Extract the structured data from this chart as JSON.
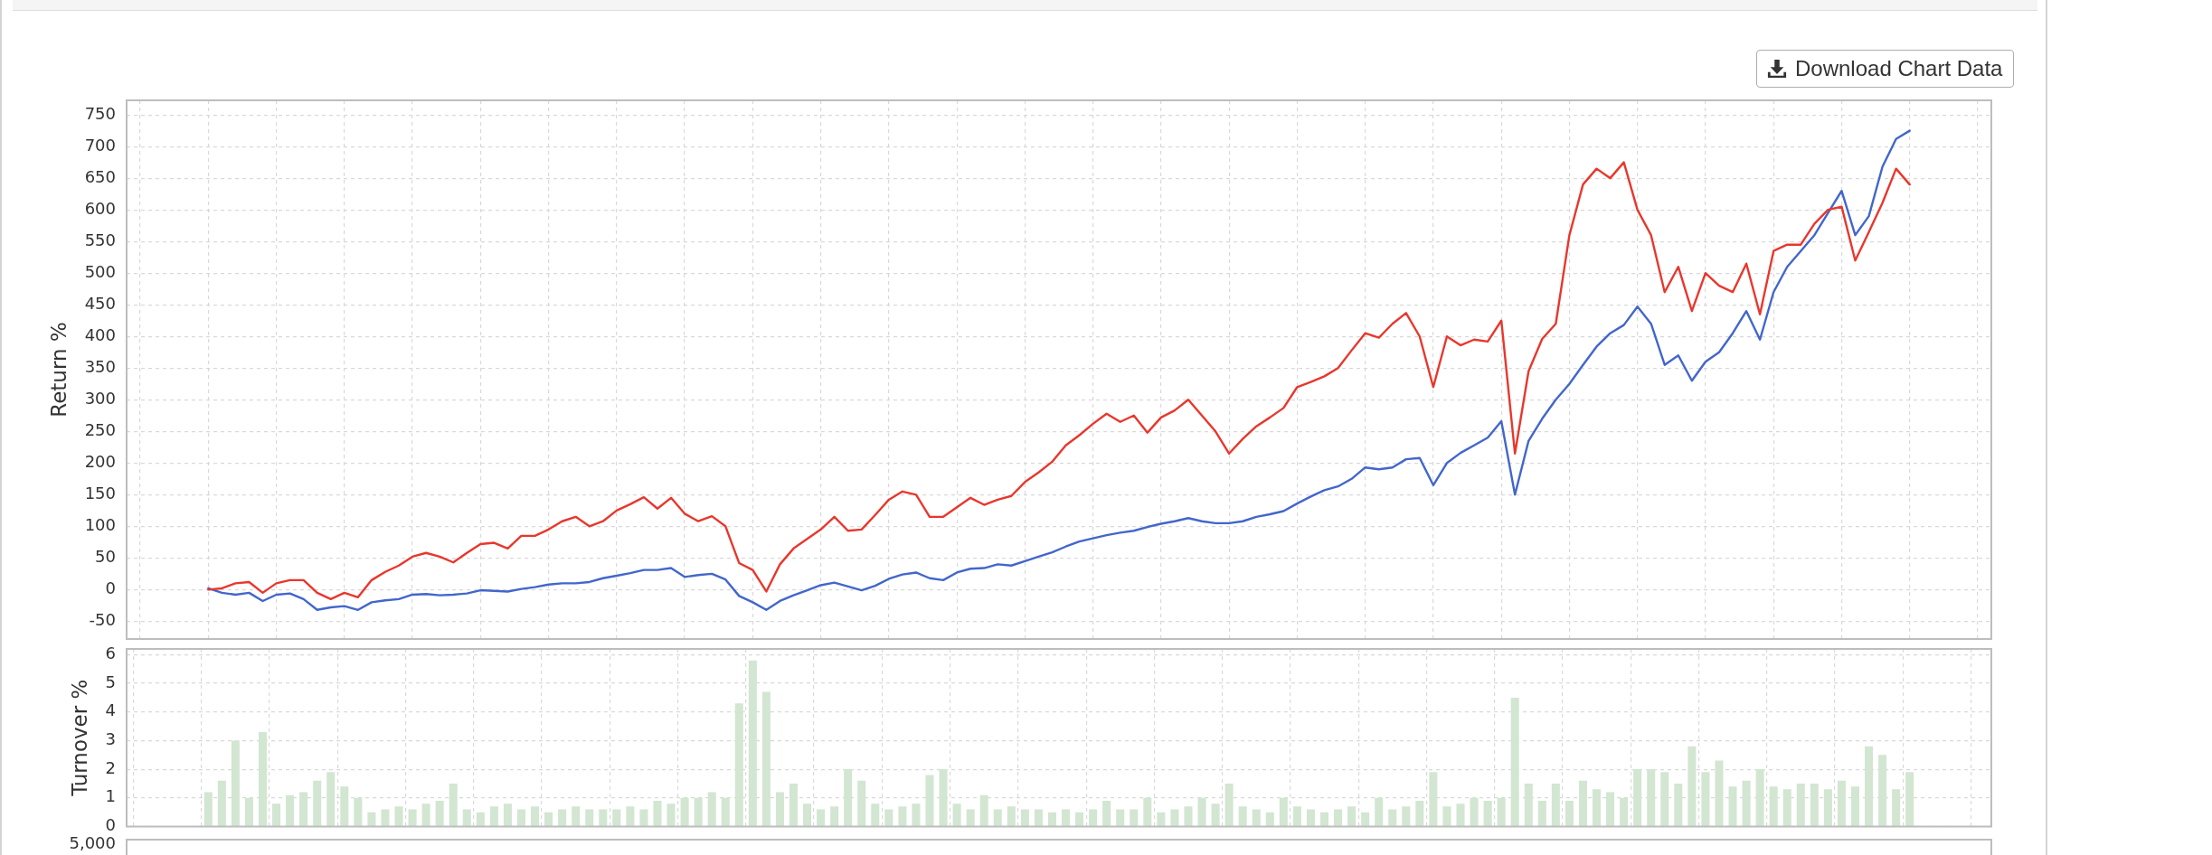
{
  "chart_data": [
    {
      "type": "line",
      "ylabel": "Return %",
      "annotations": [
        "Download Chart Data"
      ],
      "grid": true,
      "tick_labels": "y",
      "ylim": [
        -78,
        773
      ],
      "yticks": [
        -50,
        0,
        50,
        100,
        150,
        200,
        250,
        300,
        350,
        400,
        450,
        500,
        550,
        600,
        650,
        700,
        750
      ],
      "categories": [
        null,
        null,
        null,
        null,
        null,
        null,
        null,
        null,
        null,
        null,
        null,
        null,
        null,
        null,
        null,
        null,
        null,
        null,
        null,
        null,
        null,
        null,
        null,
        null,
        null,
        null,
        null,
        null,
        null,
        null,
        null,
        null,
        null,
        null,
        null,
        null,
        null,
        null,
        null,
        null,
        null,
        null,
        null,
        null,
        null,
        null,
        null,
        null,
        null,
        null,
        null,
        null,
        null,
        null,
        null,
        null,
        null,
        null,
        null,
        null,
        null,
        null,
        null,
        null,
        null,
        null,
        null,
        null,
        null,
        null,
        null,
        null,
        null,
        null,
        null,
        null,
        null,
        null,
        null,
        null,
        null,
        null,
        null,
        null,
        null,
        null,
        null,
        null,
        null,
        null,
        null,
        null,
        null,
        null,
        null,
        null,
        null,
        null,
        null,
        null,
        null,
        null,
        null,
        null,
        null,
        null,
        null,
        null,
        null,
        null,
        null,
        null,
        null,
        null,
        null,
        null,
        null,
        null,
        null,
        null,
        null,
        null,
        null,
        null,
        null,
        null,
        null,
        null,
        null,
        null,
        null,
        null,
        null,
        null,
        null,
        null,
        null,
        null
      ],
      "series": [
        {
          "color": "#e8372d",
          "values": [
            null,
            null,
            null,
            null,
            null,
            null,
            0,
            2,
            10,
            12,
            -5,
            10,
            15,
            15,
            -5,
            -15,
            -5,
            -12,
            15,
            28,
            38,
            52,
            58,
            52,
            43,
            58,
            72,
            74,
            65,
            85,
            85,
            95,
            108,
            115,
            100,
            108,
            125,
            135,
            146,
            128,
            145,
            120,
            108,
            116,
            100,
            42,
            31,
            -3,
            40,
            65,
            80,
            95,
            115,
            93,
            95,
            118,
            142,
            155,
            150,
            115,
            115,
            130,
            145,
            134,
            142,
            148,
            170,
            185,
            202,
            228,
            244,
            262,
            278,
            265,
            275,
            248,
            272,
            283,
            300,
            275,
            250,
            215,
            238,
            258,
            272,
            287,
            320,
            328,
            337,
            350,
            378,
            405,
            398,
            420,
            437,
            400,
            320,
            400,
            386,
            395,
            392,
            425,
            215,
            345,
            396,
            420,
            560,
            640,
            665,
            650,
            675,
            600,
            560,
            470,
            510,
            440,
            500,
            480,
            470,
            515,
            435,
            535,
            545,
            545,
            578,
            600,
            605,
            520,
            565,
            611,
            665,
            640,
            null,
            null,
            null,
            null,
            null,
            null
          ]
        },
        {
          "color": "#4266cb",
          "values": [
            null,
            null,
            null,
            null,
            null,
            null,
            2,
            -5,
            -8,
            -5,
            -18,
            -8,
            -6,
            -15,
            -32,
            -28,
            -26,
            -32,
            -20,
            -17,
            -15,
            -8,
            -7,
            -9,
            -8,
            -6,
            -1,
            -2,
            -3,
            1,
            4,
            8,
            10,
            10,
            12,
            18,
            22,
            26,
            31,
            31,
            34,
            20,
            23,
            25,
            16,
            -10,
            -20,
            -32,
            -18,
            -9,
            -1,
            7,
            11,
            5,
            -1,
            6,
            17,
            24,
            27,
            18,
            15,
            27,
            33,
            34,
            40,
            38,
            45,
            52,
            59,
            68,
            76,
            81,
            86,
            90,
            93,
            99,
            104,
            108,
            113,
            108,
            105,
            105,
            108,
            115,
            119,
            124,
            136,
            147,
            157,
            163,
            175,
            193,
            190,
            193,
            206,
            208,
            165,
            200,
            216,
            228,
            240,
            266,
            150,
            235,
            270,
            300,
            325,
            355,
            384,
            405,
            418,
            447,
            420,
            355,
            370,
            330,
            360,
            375,
            405,
            440,
            395,
            470,
            510,
            535,
            560,
            595,
            630,
            560,
            590,
            668,
            712,
            725,
            null,
            null,
            null,
            null,
            null,
            null
          ]
        }
      ]
    },
    {
      "type": "bar",
      "ylabel": "Turnover %",
      "annotations": [
        "5,000"
      ],
      "grid": true,
      "tick_labels": "y",
      "ylim": [
        0,
        6.2
      ],
      "yticks": [
        0,
        1,
        2,
        3,
        4,
        5,
        6
      ],
      "color": "#d2e6d2",
      "categories": [
        null,
        null,
        null,
        null,
        null,
        null,
        null,
        null,
        null,
        null,
        null,
        null,
        null,
        null,
        null,
        null,
        null,
        null,
        null,
        null,
        null,
        null,
        null,
        null,
        null,
        null,
        null,
        null,
        null,
        null,
        null,
        null,
        null,
        null,
        null,
        null,
        null,
        null,
        null,
        null,
        null,
        null,
        null,
        null,
        null,
        null,
        null,
        null,
        null,
        null,
        null,
        null,
        null,
        null,
        null,
        null,
        null,
        null,
        null,
        null,
        null,
        null,
        null,
        null,
        null,
        null,
        null,
        null,
        null,
        null,
        null,
        null,
        null,
        null,
        null,
        null,
        null,
        null,
        null,
        null,
        null,
        null,
        null,
        null,
        null,
        null,
        null,
        null,
        null,
        null,
        null,
        null,
        null,
        null,
        null,
        null,
        null,
        null,
        null,
        null,
        null,
        null,
        null,
        null,
        null,
        null,
        null,
        null,
        null,
        null,
        null,
        null,
        null,
        null,
        null,
        null,
        null,
        null,
        null,
        null,
        null,
        null,
        null,
        null,
        null,
        null,
        null,
        null,
        null,
        null,
        null,
        null,
        null,
        null,
        null,
        null,
        null,
        null
      ],
      "values": [
        null,
        null,
        null,
        null,
        null,
        null,
        1.2,
        1.6,
        3.0,
        1.0,
        3.3,
        0.8,
        1.1,
        1.2,
        1.6,
        1.9,
        1.4,
        1.0,
        0.5,
        0.6,
        0.7,
        0.6,
        0.8,
        0.9,
        1.5,
        0.6,
        0.5,
        0.7,
        0.8,
        0.6,
        0.7,
        0.5,
        0.6,
        0.7,
        0.6,
        0.6,
        0.6,
        0.7,
        0.6,
        0.9,
        0.8,
        1.0,
        1.0,
        1.2,
        1.0,
        4.3,
        5.8,
        4.7,
        1.2,
        1.5,
        0.8,
        0.6,
        0.7,
        2.0,
        1.6,
        0.8,
        0.6,
        0.7,
        0.8,
        1.8,
        2.0,
        0.8,
        0.6,
        1.1,
        0.6,
        0.7,
        0.6,
        0.6,
        0.5,
        0.6,
        0.5,
        0.6,
        0.9,
        0.6,
        0.6,
        1.0,
        0.5,
        0.6,
        0.7,
        1.0,
        0.8,
        1.5,
        0.7,
        0.6,
        0.5,
        1.0,
        0.7,
        0.6,
        0.5,
        0.6,
        0.7,
        0.5,
        1.0,
        0.6,
        0.7,
        0.9,
        1.9,
        0.7,
        0.8,
        1.0,
        0.9,
        1.0,
        4.5,
        1.5,
        0.9,
        1.5,
        0.9,
        1.6,
        1.3,
        1.2,
        1.0,
        2.0,
        2.0,
        1.9,
        1.5,
        2.8,
        1.9,
        2.3,
        1.4,
        1.6,
        2.0,
        1.4,
        1.3,
        1.5,
        1.5,
        1.3,
        1.6,
        1.4,
        2.8,
        2.5,
        1.3,
        1.9,
        null,
        null,
        null,
        null,
        null,
        null
      ]
    }
  ]
}
